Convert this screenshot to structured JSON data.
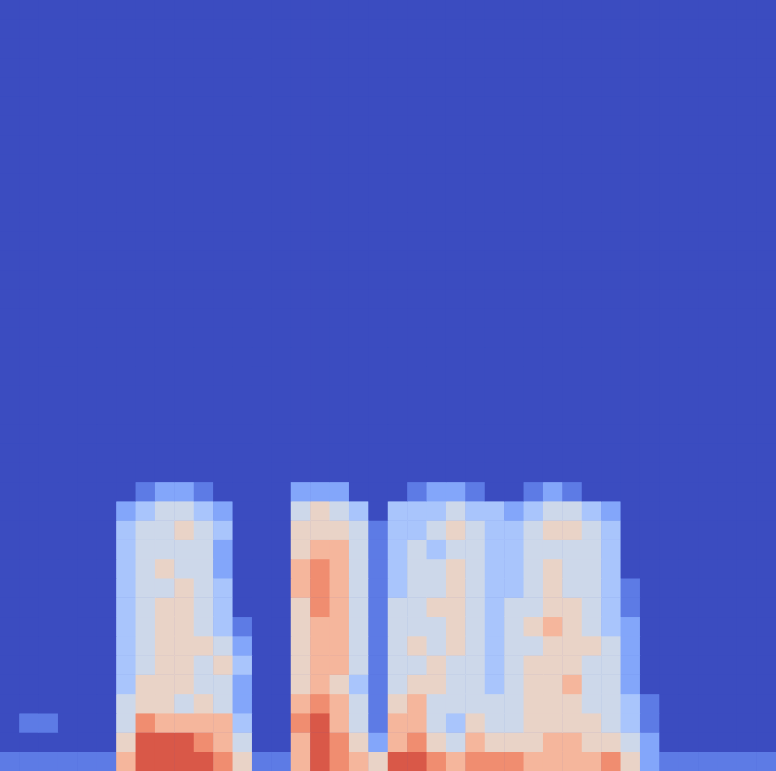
{
  "chart_data": {
    "type": "heatmap",
    "tick_labels": false,
    "grid": false,
    "color_range": [
      0,
      9
    ],
    "cells": [
      [
        1,
        1,
        1,
        1,
        1,
        1,
        6,
        8,
        8,
        8,
        8,
        7,
        5,
        1,
        1,
        6,
        8,
        7,
        6,
        5,
        8,
        8,
        7,
        6,
        7,
        7,
        7,
        6,
        6,
        6,
        6,
        7,
        5,
        2,
        1,
        1,
        1,
        1,
        1,
        1
      ],
      [
        0,
        0,
        0,
        0,
        0,
        0,
        5,
        8,
        8,
        8,
        7,
        6,
        4,
        0,
        0,
        6,
        8,
        7,
        5,
        2,
        6,
        7,
        5,
        4,
        6,
        5,
        5,
        5,
        6,
        6,
        5,
        5,
        4,
        2,
        0,
        0,
        0,
        0,
        0,
        0
      ],
      [
        0,
        1,
        1,
        0,
        0,
        0,
        4,
        7,
        6,
        6,
        6,
        6,
        3,
        0,
        0,
        7,
        8,
        6,
        4,
        1,
        6,
        6,
        4,
        3,
        5,
        4,
        4,
        5,
        5,
        5,
        5,
        4,
        3,
        1,
        0,
        0,
        0,
        0,
        0,
        0
      ],
      [
        0,
        0,
        0,
        0,
        0,
        0,
        4,
        5,
        5,
        4,
        5,
        4,
        2,
        0,
        0,
        6,
        7,
        6,
        4,
        1,
        5,
        6,
        4,
        4,
        4,
        4,
        4,
        5,
        5,
        5,
        4,
        4,
        3,
        1,
        0,
        0,
        0,
        0,
        0,
        0
      ],
      [
        0,
        0,
        0,
        0,
        0,
        0,
        3,
        5,
        5,
        5,
        4,
        4,
        2,
        0,
        0,
        5,
        6,
        5,
        3,
        1,
        4,
        5,
        5,
        4,
        4,
        3,
        4,
        5,
        5,
        6,
        4,
        4,
        2,
        0,
        0,
        0,
        0,
        0,
        0,
        0
      ],
      [
        0,
        0,
        0,
        0,
        0,
        0,
        3,
        4,
        5,
        5,
        4,
        5,
        3,
        0,
        0,
        5,
        6,
        6,
        4,
        1,
        4,
        4,
        5,
        4,
        4,
        3,
        4,
        5,
        5,
        5,
        4,
        4,
        2,
        0,
        0,
        0,
        0,
        0,
        0,
        0
      ],
      [
        0,
        0,
        0,
        0,
        0,
        0,
        3,
        4,
        5,
        5,
        5,
        4,
        2,
        0,
        0,
        5,
        6,
        6,
        4,
        1,
        4,
        5,
        4,
        5,
        4,
        3,
        4,
        4,
        5,
        5,
        5,
        4,
        2,
        0,
        0,
        0,
        0,
        0,
        0,
        0
      ],
      [
        0,
        0,
        0,
        0,
        0,
        0,
        3,
        4,
        5,
        5,
        4,
        3,
        1,
        0,
        0,
        5,
        6,
        6,
        4,
        1,
        4,
        4,
        4,
        5,
        4,
        3,
        4,
        5,
        6,
        5,
        4,
        3,
        2,
        0,
        0,
        0,
        0,
        0,
        0,
        0
      ],
      [
        0,
        0,
        0,
        0,
        0,
        0,
        3,
        4,
        5,
        5,
        4,
        3,
        0,
        0,
        0,
        5,
        7,
        6,
        4,
        1,
        4,
        4,
        5,
        5,
        4,
        3,
        4,
        4,
        5,
        5,
        4,
        3,
        1,
        0,
        0,
        0,
        0,
        0,
        0,
        0
      ],
      [
        0,
        0,
        0,
        0,
        0,
        0,
        3,
        4,
        4,
        5,
        4,
        3,
        0,
        0,
        0,
        6,
        7,
        6,
        4,
        1,
        3,
        4,
        4,
        5,
        4,
        3,
        3,
        4,
        5,
        4,
        4,
        3,
        1,
        0,
        0,
        0,
        0,
        0,
        0,
        0
      ],
      [
        0,
        0,
        0,
        0,
        0,
        0,
        3,
        4,
        5,
        4,
        4,
        2,
        0,
        0,
        0,
        6,
        7,
        6,
        4,
        1,
        3,
        4,
        4,
        5,
        4,
        3,
        3,
        4,
        5,
        4,
        4,
        3,
        0,
        0,
        0,
        0,
        0,
        0,
        0,
        0
      ],
      [
        0,
        0,
        0,
        0,
        0,
        0,
        3,
        4,
        4,
        4,
        4,
        2,
        0,
        0,
        0,
        5,
        6,
        6,
        4,
        1,
        3,
        4,
        3,
        4,
        4,
        3,
        3,
        4,
        4,
        4,
        4,
        3,
        0,
        0,
        0,
        0,
        0,
        0,
        0,
        0
      ],
      [
        0,
        0,
        0,
        0,
        0,
        0,
        3,
        4,
        4,
        5,
        4,
        3,
        0,
        0,
        0,
        5,
        5,
        5,
        4,
        1,
        3,
        3,
        4,
        5,
        4,
        3,
        3,
        4,
        5,
        5,
        4,
        3,
        0,
        0,
        0,
        0,
        0,
        0,
        0,
        0
      ],
      [
        0,
        0,
        0,
        0,
        0,
        0,
        2,
        3,
        4,
        4,
        3,
        2,
        0,
        0,
        0,
        4,
        5,
        4,
        3,
        0,
        3,
        3,
        3,
        4,
        3,
        3,
        2,
        3,
        4,
        4,
        3,
        2,
        0,
        0,
        0,
        0,
        0,
        0,
        0,
        0
      ],
      [
        0,
        0,
        0,
        0,
        0,
        0,
        0,
        1,
        2,
        2,
        1,
        0,
        0,
        0,
        0,
        2,
        2,
        2,
        0,
        0,
        0,
        1,
        2,
        2,
        1,
        0,
        0,
        1,
        2,
        1,
        0,
        0,
        0,
        0,
        0,
        0,
        0,
        0,
        0,
        0
      ],
      [
        0,
        0,
        0,
        0,
        0,
        0,
        0,
        0,
        0,
        0,
        0,
        0,
        0,
        0,
        0,
        0,
        0,
        0,
        0,
        0,
        0,
        0,
        0,
        0,
        0,
        0,
        0,
        0,
        0,
        0,
        0,
        0,
        0,
        0,
        0,
        0,
        0,
        0,
        0,
        0
      ],
      [
        0,
        0,
        0,
        0,
        0,
        0,
        0,
        0,
        0,
        0,
        0,
        0,
        0,
        0,
        0,
        0,
        0,
        0,
        0,
        0,
        0,
        0,
        0,
        0,
        0,
        0,
        0,
        0,
        0,
        0,
        0,
        0,
        0,
        0,
        0,
        0,
        0,
        0,
        0,
        0
      ],
      [
        0,
        0,
        0,
        0,
        0,
        0,
        0,
        0,
        0,
        0,
        0,
        0,
        0,
        0,
        0,
        0,
        0,
        0,
        0,
        0,
        0,
        0,
        0,
        0,
        0,
        0,
        0,
        0,
        0,
        0,
        0,
        0,
        0,
        0,
        0,
        0,
        0,
        0,
        0,
        0
      ],
      [
        0,
        0,
        0,
        0,
        0,
        0,
        0,
        0,
        0,
        0,
        0,
        0,
        0,
        0,
        0,
        0,
        0,
        0,
        0,
        0,
        0,
        0,
        0,
        0,
        0,
        0,
        0,
        0,
        0,
        0,
        0,
        0,
        0,
        0,
        0,
        0,
        0,
        0,
        0,
        0
      ],
      [
        0,
        0,
        0,
        0,
        0,
        0,
        0,
        0,
        0,
        0,
        0,
        0,
        0,
        0,
        0,
        0,
        0,
        0,
        0,
        0,
        0,
        0,
        0,
        0,
        0,
        0,
        0,
        0,
        0,
        0,
        0,
        0,
        0,
        0,
        0,
        0,
        0,
        0,
        0,
        0
      ],
      [
        0,
        0,
        0,
        0,
        0,
        0,
        0,
        0,
        0,
        0,
        0,
        0,
        0,
        0,
        0,
        0,
        0,
        0,
        0,
        0,
        0,
        0,
        0,
        0,
        0,
        0,
        0,
        0,
        0,
        0,
        0,
        0,
        0,
        0,
        0,
        0,
        0,
        0,
        0,
        0
      ],
      [
        0,
        0,
        0,
        0,
        0,
        0,
        0,
        0,
        0,
        0,
        0,
        0,
        0,
        0,
        0,
        0,
        0,
        0,
        0,
        0,
        0,
        0,
        0,
        0,
        0,
        0,
        0,
        0,
        0,
        0,
        0,
        0,
        0,
        0,
        0,
        0,
        0,
        0,
        0,
        0
      ],
      [
        0,
        0,
        0,
        0,
        0,
        0,
        0,
        0,
        0,
        0,
        0,
        0,
        0,
        0,
        0,
        0,
        0,
        0,
        0,
        0,
        0,
        0,
        0,
        0,
        0,
        0,
        0,
        0,
        0,
        0,
        0,
        0,
        0,
        0,
        0,
        0,
        0,
        0,
        0,
        0
      ],
      [
        0,
        0,
        0,
        0,
        0,
        0,
        0,
        0,
        0,
        0,
        0,
        0,
        0,
        0,
        0,
        0,
        0,
        0,
        0,
        0,
        0,
        0,
        0,
        0,
        0,
        0,
        0,
        0,
        0,
        0,
        0,
        0,
        0,
        0,
        0,
        0,
        0,
        0,
        0,
        0
      ],
      [
        0,
        0,
        0,
        0,
        0,
        0,
        0,
        0,
        0,
        0,
        0,
        0,
        0,
        0,
        0,
        0,
        0,
        0,
        0,
        0,
        0,
        0,
        0,
        0,
        0,
        0,
        0,
        0,
        0,
        0,
        0,
        0,
        0,
        0,
        0,
        0,
        0,
        0,
        0,
        0
      ],
      [
        0,
        0,
        0,
        0,
        0,
        0,
        0,
        0,
        0,
        0,
        0,
        0,
        0,
        0,
        0,
        0,
        0,
        0,
        0,
        0,
        0,
        0,
        0,
        0,
        0,
        0,
        0,
        0,
        0,
        0,
        0,
        0,
        0,
        0,
        0,
        0,
        0,
        0,
        0,
        0
      ],
      [
        0,
        0,
        0,
        0,
        0,
        0,
        0,
        0,
        0,
        0,
        0,
        0,
        0,
        0,
        0,
        0,
        0,
        0,
        0,
        0,
        0,
        0,
        0,
        0,
        0,
        0,
        0,
        0,
        0,
        0,
        0,
        0,
        0,
        0,
        0,
        0,
        0,
        0,
        0,
        0
      ],
      [
        0,
        0,
        0,
        0,
        0,
        0,
        0,
        0,
        0,
        0,
        0,
        0,
        0,
        0,
        0,
        0,
        0,
        0,
        0,
        0,
        0,
        0,
        0,
        0,
        0,
        0,
        0,
        0,
        0,
        0,
        0,
        0,
        0,
        0,
        0,
        0,
        0,
        0,
        0,
        0
      ],
      [
        0,
        0,
        0,
        0,
        0,
        0,
        0,
        0,
        0,
        0,
        0,
        0,
        0,
        0,
        0,
        0,
        0,
        0,
        0,
        0,
        0,
        0,
        0,
        0,
        0,
        0,
        0,
        0,
        0,
        0,
        0,
        0,
        0,
        0,
        0,
        0,
        0,
        0,
        0,
        0
      ],
      [
        0,
        0,
        0,
        0,
        0,
        0,
        0,
        0,
        0,
        0,
        0,
        0,
        0,
        0,
        0,
        0,
        0,
        0,
        0,
        0,
        0,
        0,
        0,
        0,
        0,
        0,
        0,
        0,
        0,
        0,
        0,
        0,
        0,
        0,
        0,
        0,
        0,
        0,
        0,
        0
      ],
      [
        0,
        0,
        0,
        0,
        0,
        0,
        0,
        0,
        0,
        0,
        0,
        0,
        0,
        0,
        0,
        0,
        0,
        0,
        0,
        0,
        0,
        0,
        0,
        0,
        0,
        0,
        0,
        0,
        0,
        0,
        0,
        0,
        0,
        0,
        0,
        0,
        0,
        0,
        0,
        0
      ],
      [
        0,
        0,
        0,
        0,
        0,
        0,
        0,
        0,
        0,
        0,
        0,
        0,
        0,
        0,
        0,
        0,
        0,
        0,
        0,
        0,
        0,
        0,
        0,
        0,
        0,
        0,
        0,
        0,
        0,
        0,
        0,
        0,
        0,
        0,
        0,
        0,
        0,
        0,
        0,
        0
      ],
      [
        0,
        0,
        0,
        0,
        0,
        0,
        0,
        0,
        0,
        0,
        0,
        0,
        0,
        0,
        0,
        0,
        0,
        0,
        0,
        0,
        0,
        0,
        0,
        0,
        0,
        0,
        0,
        0,
        0,
        0,
        0,
        0,
        0,
        0,
        0,
        0,
        0,
        0,
        0,
        0
      ],
      [
        0,
        0,
        0,
        0,
        0,
        0,
        0,
        0,
        0,
        0,
        0,
        0,
        0,
        0,
        0,
        0,
        0,
        0,
        0,
        0,
        0,
        0,
        0,
        0,
        0,
        0,
        0,
        0,
        0,
        0,
        0,
        0,
        0,
        0,
        0,
        0,
        0,
        0,
        0,
        0
      ],
      [
        0,
        0,
        0,
        0,
        0,
        0,
        0,
        0,
        0,
        0,
        0,
        0,
        0,
        0,
        0,
        0,
        0,
        0,
        0,
        0,
        0,
        0,
        0,
        0,
        0,
        0,
        0,
        0,
        0,
        0,
        0,
        0,
        0,
        0,
        0,
        0,
        0,
        0,
        0,
        0
      ],
      [
        0,
        0,
        0,
        0,
        0,
        0,
        0,
        0,
        0,
        0,
        0,
        0,
        0,
        0,
        0,
        0,
        0,
        0,
        0,
        0,
        0,
        0,
        0,
        0,
        0,
        0,
        0,
        0,
        0,
        0,
        0,
        0,
        0,
        0,
        0,
        0,
        0,
        0,
        0,
        0
      ],
      [
        0,
        0,
        0,
        0,
        0,
        0,
        0,
        0,
        0,
        0,
        0,
        0,
        0,
        0,
        0,
        0,
        0,
        0,
        0,
        0,
        0,
        0,
        0,
        0,
        0,
        0,
        0,
        0,
        0,
        0,
        0,
        0,
        0,
        0,
        0,
        0,
        0,
        0,
        0,
        0
      ],
      [
        0,
        0,
        0,
        0,
        0,
        0,
        0,
        0,
        0,
        0,
        0,
        0,
        0,
        0,
        0,
        0,
        0,
        0,
        0,
        0,
        0,
        0,
        0,
        0,
        0,
        0,
        0,
        0,
        0,
        0,
        0,
        0,
        0,
        0,
        0,
        0,
        0,
        0,
        0,
        0
      ],
      [
        0,
        0,
        0,
        0,
        0,
        0,
        0,
        0,
        0,
        0,
        0,
        0,
        0,
        0,
        0,
        0,
        0,
        0,
        0,
        0,
        0,
        0,
        0,
        0,
        0,
        0,
        0,
        0,
        0,
        0,
        0,
        0,
        0,
        0,
        0,
        0,
        0,
        0,
        0,
        0
      ],
      [
        0,
        0,
        0,
        0,
        0,
        0,
        0,
        0,
        0,
        0,
        0,
        0,
        0,
        0,
        0,
        0,
        0,
        0,
        0,
        0,
        0,
        0,
        0,
        0,
        0,
        0,
        0,
        0,
        0,
        0,
        0,
        0,
        0,
        0,
        0,
        0,
        0,
        0,
        0,
        0
      ]
    ]
  }
}
